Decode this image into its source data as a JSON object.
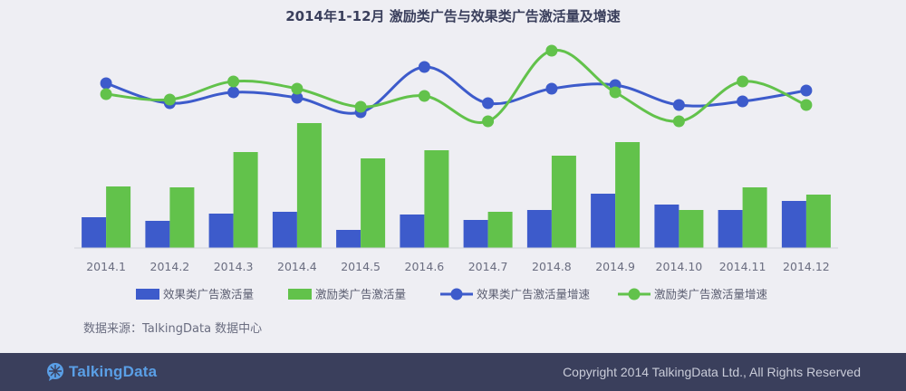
{
  "colors": {
    "blue": "#3d5bcb",
    "green": "#62c24b",
    "footer_bg": "#3a3f5c",
    "logo": "#5a9fe6"
  },
  "chart_data": {
    "type": "bar",
    "title": "2014年1-12月 激励类广告与效果类广告激活量及增速",
    "categories": [
      "2014.1",
      "2014.2",
      "2014.3",
      "2014.4",
      "2014.5",
      "2014.6",
      "2014.7",
      "2014.8",
      "2014.9",
      "2014.10",
      "2014.11",
      "2014.12"
    ],
    "series": [
      {
        "name": "效果类广告激活量",
        "kind": "bar",
        "color": "#3d5bcb",
        "values": [
          17,
          15,
          19,
          20,
          10,
          18.5,
          15.5,
          21,
          30,
          24,
          21,
          26
        ]
      },
      {
        "name": "激励类广告激活量",
        "kind": "bar",
        "color": "#62c24b",
        "values": [
          34,
          33.5,
          53,
          69,
          49.5,
          54,
          20,
          51,
          58.5,
          21,
          33.5,
          29.5
        ]
      },
      {
        "name": "效果类广告激活量增速",
        "kind": "line",
        "color": "#3d5bcb",
        "values": [
          64,
          53,
          59,
          56,
          48,
          73,
          53,
          61,
          63,
          52,
          54,
          60
        ]
      },
      {
        "name": "激励类广告激活量增速",
        "kind": "line",
        "color": "#62c24b",
        "values": [
          58,
          55,
          65,
          61,
          51,
          57,
          43,
          82,
          59,
          43,
          65,
          52
        ]
      }
    ],
    "legend_position": "bottom",
    "grid": false
  },
  "source_text": "数据来源：TalkingData 数据中心",
  "footer": {
    "logo_text": "TalkingData",
    "copyright": "Copyright 2014 TalkingData Ltd., All Rights Reserved"
  }
}
